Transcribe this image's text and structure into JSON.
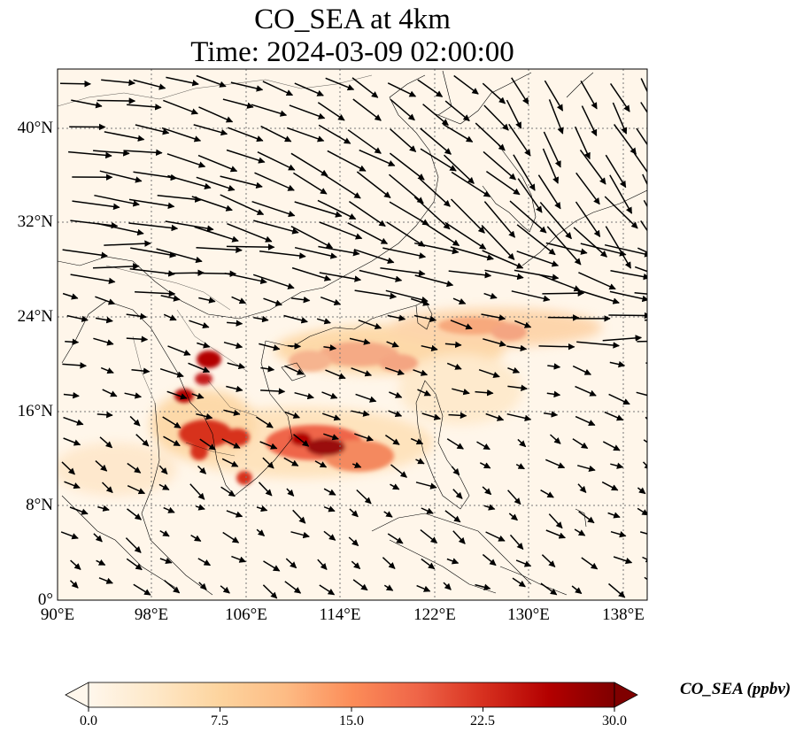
{
  "title": {
    "line1": "CO_SEA at 4km",
    "line2": "Time: 2024-03-09 02:00:00"
  },
  "map": {
    "lat_labels": [
      "40°N",
      "32°N",
      "24°N",
      "16°N",
      "8°N",
      "0°"
    ],
    "lon_labels": [
      "90°E",
      "98°E",
      "106°E",
      "114°E",
      "122°E",
      "130°E",
      "138°E"
    ],
    "grid": true,
    "lon_range": [
      90,
      140
    ],
    "lat_range": [
      0,
      45
    ]
  },
  "colorbar": {
    "label": "CO_SEA (ppbv)",
    "ticks": [
      "0.0",
      "7.5",
      "15.0",
      "22.5",
      "30.0"
    ],
    "range": [
      0,
      30
    ],
    "colormap": [
      "#fff7ec",
      "#fee8c8",
      "#fdd49e",
      "#fdbb84",
      "#fc8d59",
      "#ef6548",
      "#d7301f",
      "#b30000",
      "#7f0000"
    ]
  }
}
